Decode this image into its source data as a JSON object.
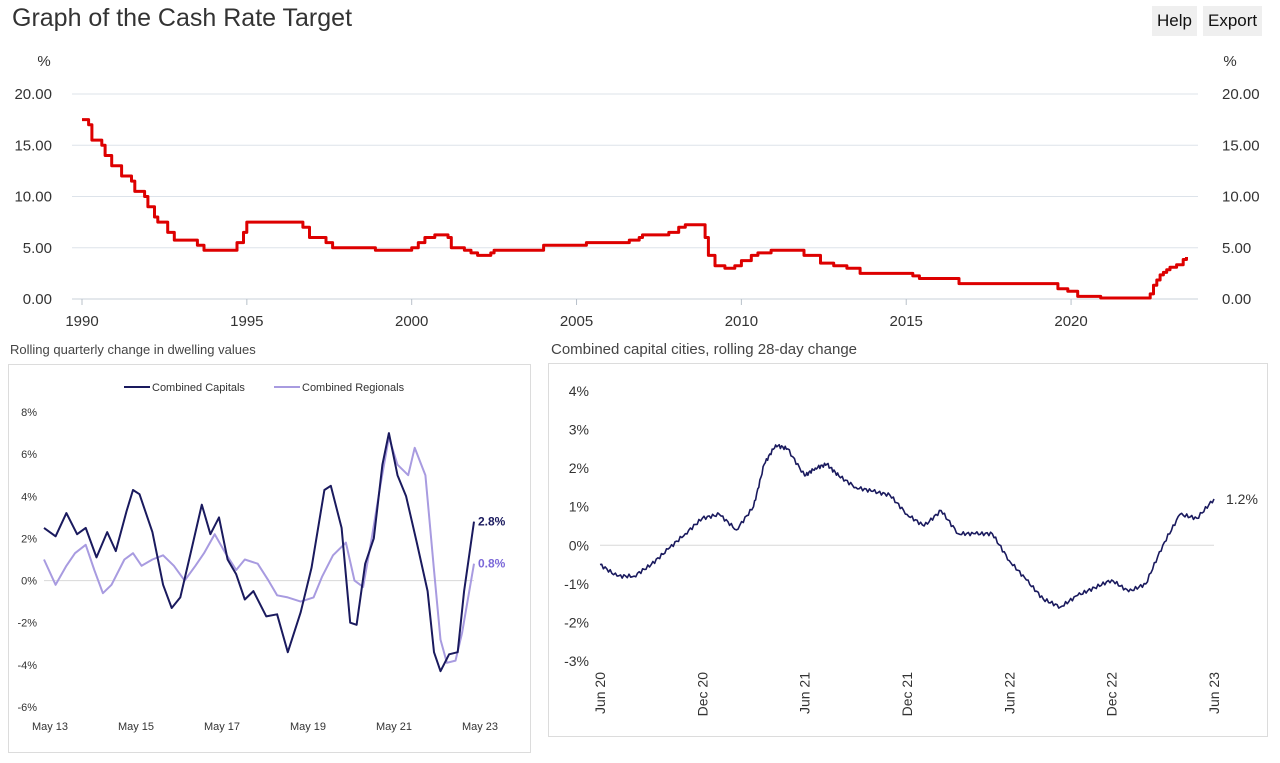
{
  "page": {
    "title": "Graph of the Cash Rate Target",
    "help_label": "Help",
    "export_label": "Export"
  },
  "colors": {
    "cash_rate": "#dd0000",
    "capitals": "#1a1a5e",
    "regionals": "#a89be0",
    "regionals_label": "#7b68d8",
    "grid": "#dde3ea"
  },
  "chart_data": [
    {
      "type": "line",
      "title": "Graph of the Cash Rate Target",
      "yunit": "%",
      "ylim": [
        0,
        20
      ],
      "yticks": [
        "0.00",
        "5.00",
        "10.00",
        "15.00",
        "20.00"
      ],
      "xticks": [
        "1990",
        "1995",
        "2000",
        "2005",
        "2010",
        "2015",
        "2020"
      ],
      "series": [
        {
          "points": [
            [
              1990.0,
              17.5
            ],
            [
              1990.2,
              17.0
            ],
            [
              1990.3,
              15.5
            ],
            [
              1990.6,
              15.0
            ],
            [
              1990.7,
              14.0
            ],
            [
              1990.9,
              13.0
            ],
            [
              1991.2,
              12.0
            ],
            [
              1991.5,
              11.5
            ],
            [
              1991.6,
              10.5
            ],
            [
              1991.9,
              10.0
            ],
            [
              1992.0,
              9.0
            ],
            [
              1992.2,
              8.0
            ],
            [
              1992.3,
              7.5
            ],
            [
              1992.6,
              6.5
            ],
            [
              1992.8,
              5.75
            ],
            [
              1993.5,
              5.25
            ],
            [
              1993.7,
              4.75
            ],
            [
              1994.6,
              4.75
            ],
            [
              1994.7,
              5.5
            ],
            [
              1994.9,
              6.5
            ],
            [
              1995.0,
              7.5
            ],
            [
              1996.5,
              7.5
            ],
            [
              1996.7,
              7.0
            ],
            [
              1996.9,
              6.0
            ],
            [
              1997.4,
              5.5
            ],
            [
              1997.6,
              5.0
            ],
            [
              1998.9,
              4.75
            ],
            [
              1999.9,
              4.75
            ],
            [
              2000.0,
              5.0
            ],
            [
              2000.2,
              5.5
            ],
            [
              2000.4,
              6.0
            ],
            [
              2000.7,
              6.25
            ],
            [
              2001.1,
              6.0
            ],
            [
              2001.2,
              5.0
            ],
            [
              2001.6,
              4.75
            ],
            [
              2001.8,
              4.5
            ],
            [
              2002.0,
              4.25
            ],
            [
              2002.4,
              4.5
            ],
            [
              2002.5,
              4.75
            ],
            [
              2003.9,
              4.75
            ],
            [
              2004.0,
              5.25
            ],
            [
              2005.2,
              5.25
            ],
            [
              2005.3,
              5.5
            ],
            [
              2006.4,
              5.5
            ],
            [
              2006.6,
              5.75
            ],
            [
              2006.9,
              6.0
            ],
            [
              2007.0,
              6.25
            ],
            [
              2007.6,
              6.25
            ],
            [
              2007.8,
              6.5
            ],
            [
              2008.1,
              7.0
            ],
            [
              2008.3,
              7.25
            ],
            [
              2008.8,
              7.25
            ],
            [
              2008.9,
              6.0
            ],
            [
              2009.0,
              4.25
            ],
            [
              2009.2,
              3.25
            ],
            [
              2009.5,
              3.0
            ],
            [
              2009.8,
              3.25
            ],
            [
              2010.0,
              3.75
            ],
            [
              2010.3,
              4.25
            ],
            [
              2010.5,
              4.5
            ],
            [
              2010.9,
              4.75
            ],
            [
              2011.8,
              4.75
            ],
            [
              2011.9,
              4.25
            ],
            [
              2012.3,
              4.25
            ],
            [
              2012.4,
              3.5
            ],
            [
              2012.8,
              3.25
            ],
            [
              2013.2,
              3.0
            ],
            [
              2013.6,
              2.5
            ],
            [
              2015.0,
              2.5
            ],
            [
              2015.2,
              2.25
            ],
            [
              2015.4,
              2.0
            ],
            [
              2016.3,
              2.0
            ],
            [
              2016.6,
              1.5
            ],
            [
              2019.4,
              1.5
            ],
            [
              2019.6,
              1.0
            ],
            [
              2019.9,
              0.75
            ],
            [
              2020.2,
              0.25
            ],
            [
              2020.9,
              0.1
            ],
            [
              2022.3,
              0.1
            ],
            [
              2022.4,
              0.5
            ],
            [
              2022.5,
              1.35
            ],
            [
              2022.6,
              1.85
            ],
            [
              2022.7,
              2.35
            ],
            [
              2022.8,
              2.6
            ],
            [
              2022.9,
              2.85
            ],
            [
              2023.0,
              3.1
            ],
            [
              2023.2,
              3.35
            ],
            [
              2023.4,
              3.85
            ],
            [
              2023.5,
              4.1
            ]
          ]
        }
      ]
    },
    {
      "type": "line",
      "title": "Rolling quarterly change in dwelling values",
      "ylim": [
        -6,
        8
      ],
      "yticks": [
        "-6%",
        "-4%",
        "-2%",
        "0%",
        "2%",
        "4%",
        "6%",
        "8%"
      ],
      "xlim": [
        2013.33,
        2023.33
      ],
      "xticks": [
        "May 13",
        "May 15",
        "May 17",
        "May 19",
        "May 21",
        "May 23"
      ],
      "legend": "top-center",
      "series": [
        {
          "name": "Combined Capitals",
          "end_label": "2.8%",
          "points": [
            [
              2013.33,
              2.5
            ],
            [
              2013.6,
              2.1
            ],
            [
              2013.85,
              3.2
            ],
            [
              2014.1,
              2.2
            ],
            [
              2014.3,
              2.5
            ],
            [
              2014.55,
              1.1
            ],
            [
              2014.8,
              2.3
            ],
            [
              2015.0,
              1.4
            ],
            [
              2015.25,
              3.3
            ],
            [
              2015.4,
              4.3
            ],
            [
              2015.55,
              4.1
            ],
            [
              2015.85,
              2.3
            ],
            [
              2016.1,
              -0.2
            ],
            [
              2016.3,
              -1.3
            ],
            [
              2016.5,
              -0.8
            ],
            [
              2016.75,
              1.4
            ],
            [
              2017.0,
              3.6
            ],
            [
              2017.2,
              2.2
            ],
            [
              2017.4,
              3.0
            ],
            [
              2017.6,
              1.0
            ],
            [
              2017.8,
              0.3
            ],
            [
              2018.0,
              -0.9
            ],
            [
              2018.2,
              -0.5
            ],
            [
              2018.5,
              -1.7
            ],
            [
              2018.75,
              -1.6
            ],
            [
              2019.0,
              -3.4
            ],
            [
              2019.3,
              -1.5
            ],
            [
              2019.55,
              0.6
            ],
            [
              2019.85,
              4.3
            ],
            [
              2020.0,
              4.5
            ],
            [
              2020.25,
              2.5
            ],
            [
              2020.45,
              -2.0
            ],
            [
              2020.6,
              -2.1
            ],
            [
              2020.8,
              0.8
            ],
            [
              2021.0,
              2.0
            ],
            [
              2021.2,
              5.5
            ],
            [
              2021.35,
              7.0
            ],
            [
              2021.55,
              5.0
            ],
            [
              2021.75,
              4.0
            ],
            [
              2022.0,
              1.8
            ],
            [
              2022.25,
              -0.5
            ],
            [
              2022.4,
              -3.4
            ],
            [
              2022.55,
              -4.3
            ],
            [
              2022.75,
              -3.5
            ],
            [
              2022.95,
              -3.4
            ],
            [
              2023.1,
              -0.5
            ],
            [
              2023.33,
              2.8
            ]
          ]
        },
        {
          "name": "Combined Regionals",
          "end_label": "0.8%",
          "points": [
            [
              2013.33,
              1.0
            ],
            [
              2013.6,
              -0.2
            ],
            [
              2013.85,
              0.7
            ],
            [
              2014.05,
              1.3
            ],
            [
              2014.3,
              1.7
            ],
            [
              2014.5,
              0.5
            ],
            [
              2014.7,
              -0.6
            ],
            [
              2014.9,
              -0.2
            ],
            [
              2015.2,
              1.0
            ],
            [
              2015.4,
              1.3
            ],
            [
              2015.6,
              0.7
            ],
            [
              2015.85,
              1.0
            ],
            [
              2016.1,
              1.2
            ],
            [
              2016.35,
              0.7
            ],
            [
              2016.6,
              0.0
            ],
            [
              2016.85,
              0.7
            ],
            [
              2017.05,
              1.3
            ],
            [
              2017.3,
              2.2
            ],
            [
              2017.55,
              1.3
            ],
            [
              2017.8,
              0.5
            ],
            [
              2018.0,
              1.0
            ],
            [
              2018.3,
              0.8
            ],
            [
              2018.55,
              0.0
            ],
            [
              2018.75,
              -0.7
            ],
            [
              2019.0,
              -0.8
            ],
            [
              2019.3,
              -1.0
            ],
            [
              2019.6,
              -0.8
            ],
            [
              2019.8,
              0.2
            ],
            [
              2020.05,
              1.2
            ],
            [
              2020.35,
              1.8
            ],
            [
              2020.55,
              0.0
            ],
            [
              2020.75,
              -0.3
            ],
            [
              2020.95,
              2.0
            ],
            [
              2021.15,
              4.5
            ],
            [
              2021.35,
              6.8
            ],
            [
              2021.55,
              5.5
            ],
            [
              2021.8,
              5.0
            ],
            [
              2021.95,
              6.3
            ],
            [
              2022.2,
              5.0
            ],
            [
              2022.4,
              0.5
            ],
            [
              2022.55,
              -2.8
            ],
            [
              2022.7,
              -3.9
            ],
            [
              2022.9,
              -3.8
            ],
            [
              2023.05,
              -2.5
            ],
            [
              2023.33,
              0.8
            ]
          ]
        }
      ]
    },
    {
      "type": "line",
      "title": "Combined capital cities, rolling 28-day change",
      "ylim": [
        -3,
        4
      ],
      "yticks": [
        "-3%",
        "-2%",
        "-1%",
        "0%",
        "1%",
        "2%",
        "3%",
        "4%"
      ],
      "xlim": [
        "2020-06",
        "2023-06"
      ],
      "xticks": [
        "Jun 20",
        "Dec 20",
        "Jun 21",
        "Dec 21",
        "Jun 22",
        "Dec 22",
        "Jun 23"
      ],
      "series": [
        {
          "name": "Combined capitals",
          "end_label": "1.2%",
          "points": [
            [
              "2020-06-01",
              -0.5
            ],
            [
              "2020-07-01",
              -0.8
            ],
            [
              "2020-08-01",
              -0.8
            ],
            [
              "2020-09-01",
              -0.5
            ],
            [
              "2020-10-01",
              -0.1
            ],
            [
              "2020-11-01",
              0.3
            ],
            [
              "2020-12-01",
              0.7
            ],
            [
              "2021-01-01",
              0.8
            ],
            [
              "2021-02-01",
              0.4
            ],
            [
              "2021-03-01",
              1.0
            ],
            [
              "2021-03-20",
              2.1
            ],
            [
              "2021-04-10",
              2.6
            ],
            [
              "2021-05-01",
              2.5
            ],
            [
              "2021-06-01",
              1.8
            ],
            [
              "2021-06-20",
              2.0
            ],
            [
              "2021-07-10",
              2.1
            ],
            [
              "2021-08-01",
              1.8
            ],
            [
              "2021-09-01",
              1.5
            ],
            [
              "2021-10-01",
              1.4
            ],
            [
              "2021-11-01",
              1.3
            ],
            [
              "2021-12-01",
              0.8
            ],
            [
              "2022-01-01",
              0.5
            ],
            [
              "2022-02-01",
              0.9
            ],
            [
              "2022-03-01",
              0.3
            ],
            [
              "2022-04-01",
              0.3
            ],
            [
              "2022-05-01",
              0.3
            ],
            [
              "2022-06-01",
              -0.4
            ],
            [
              "2022-07-01",
              -0.9
            ],
            [
              "2022-08-01",
              -1.4
            ],
            [
              "2022-09-01",
              -1.6
            ],
            [
              "2022-10-01",
              -1.3
            ],
            [
              "2022-11-01",
              -1.1
            ],
            [
              "2022-12-01",
              -0.9
            ],
            [
              "2023-01-01",
              -1.2
            ],
            [
              "2023-02-01",
              -1.0
            ],
            [
              "2023-03-01",
              0.0
            ],
            [
              "2023-04-01",
              0.8
            ],
            [
              "2023-05-01",
              0.7
            ],
            [
              "2023-06-01",
              1.2
            ]
          ]
        }
      ]
    }
  ]
}
